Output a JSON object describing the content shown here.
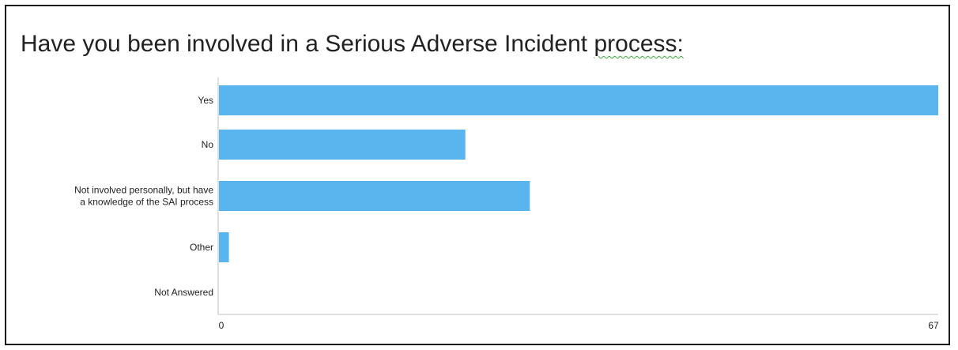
{
  "chart_data": {
    "type": "bar",
    "orientation": "horizontal",
    "title_main": "Have you been involved in a Serious Adverse Incident ",
    "title_last_word": "process:",
    "categories": [
      [
        "Yes"
      ],
      [
        "No"
      ],
      [
        "Not involved personally, but have",
        "a knowledge of the SAI process"
      ],
      [
        "Other"
      ],
      [
        "Not Answered"
      ]
    ],
    "values": [
      67,
      23,
      29,
      1,
      0
    ],
    "xlim": [
      0,
      67
    ],
    "x_ticks": [
      "0",
      "67"
    ],
    "bar_color": "#5ab4ee",
    "axis_color": "#bfbfbf",
    "grid": false,
    "legend": "none"
  }
}
